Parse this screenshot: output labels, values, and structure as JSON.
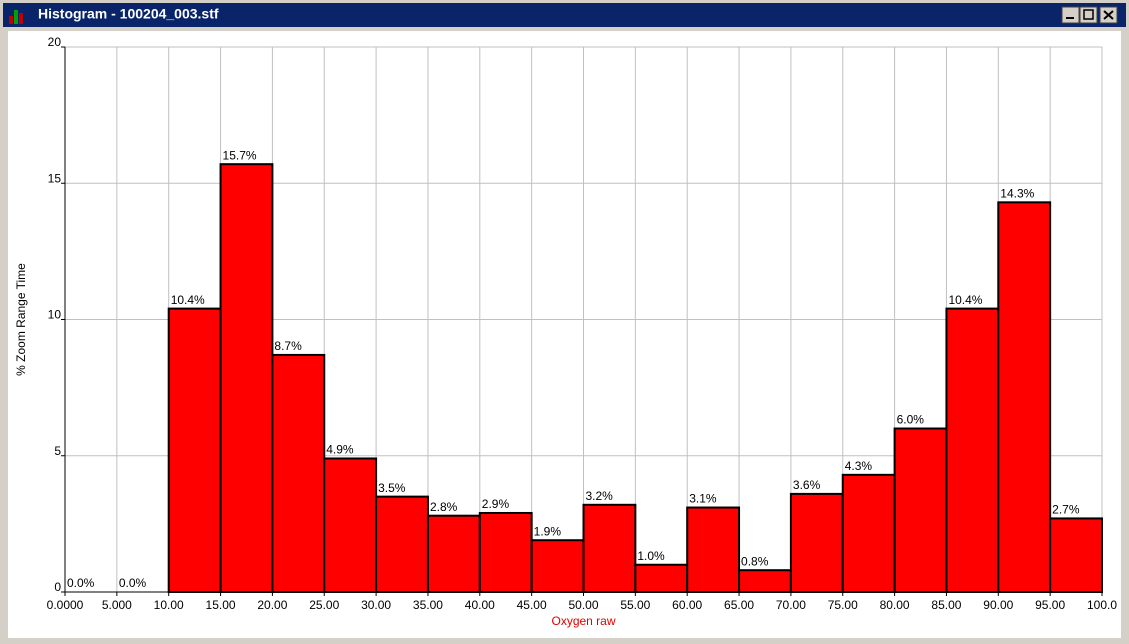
{
  "window": {
    "title": "Histogram - 100204_003.stf"
  },
  "chart_data": {
    "type": "histogram",
    "ylabel": "% Zoom Range Time",
    "xlabel": "Oxygen raw",
    "bins": [
      0,
      5,
      10,
      15,
      20,
      25,
      30,
      35,
      40,
      45,
      50,
      55,
      60,
      65,
      70,
      75,
      80,
      85,
      90,
      95,
      100
    ],
    "values": [
      0,
      0,
      10.4,
      15.7,
      8.7,
      4.9,
      3.5,
      2.8,
      2.9,
      1.9,
      3.2,
      1.0,
      3.1,
      0.8,
      3.6,
      4.3,
      6.0,
      10.4,
      14.3,
      2.7
    ],
    "value_labels": [
      "0.0%",
      "0.0%",
      "10.4%",
      "15.7%",
      "8.7%",
      "4.9%",
      "3.5%",
      "2.8%",
      "2.9%",
      "1.9%",
      "3.2%",
      "1.0%",
      "3.1%",
      "0.8%",
      "3.6%",
      "4.3%",
      "6.0%",
      "10.4%",
      "14.3%",
      "2.7%"
    ],
    "color": "#ff0000",
    "xlim": [
      0,
      100
    ],
    "xticks": [
      {
        "value": 0,
        "label": "0.0000"
      },
      {
        "value": 5,
        "label": "5.000"
      },
      {
        "value": 10,
        "label": "10.00"
      },
      {
        "value": 15,
        "label": "15.00"
      },
      {
        "value": 20,
        "label": "20.00"
      },
      {
        "value": 25,
        "label": "25.00"
      },
      {
        "value": 30,
        "label": "30.00"
      },
      {
        "value": 35,
        "label": "35.00"
      },
      {
        "value": 40,
        "label": "40.00"
      },
      {
        "value": 45,
        "label": "45.00"
      },
      {
        "value": 50,
        "label": "50.00"
      },
      {
        "value": 55,
        "label": "55.00"
      },
      {
        "value": 60,
        "label": "60.00"
      },
      {
        "value": 65,
        "label": "65.00"
      },
      {
        "value": 70,
        "label": "70.00"
      },
      {
        "value": 75,
        "label": "75.00"
      },
      {
        "value": 80,
        "label": "80.00"
      },
      {
        "value": 85,
        "label": "85.00"
      },
      {
        "value": 90,
        "label": "90.00"
      },
      {
        "value": 95,
        "label": "95.00"
      },
      {
        "value": 100,
        "label": "100.0"
      }
    ],
    "ylim": [
      0,
      20
    ],
    "yticks": [
      0,
      5,
      10,
      15,
      20
    ],
    "grid": true
  }
}
